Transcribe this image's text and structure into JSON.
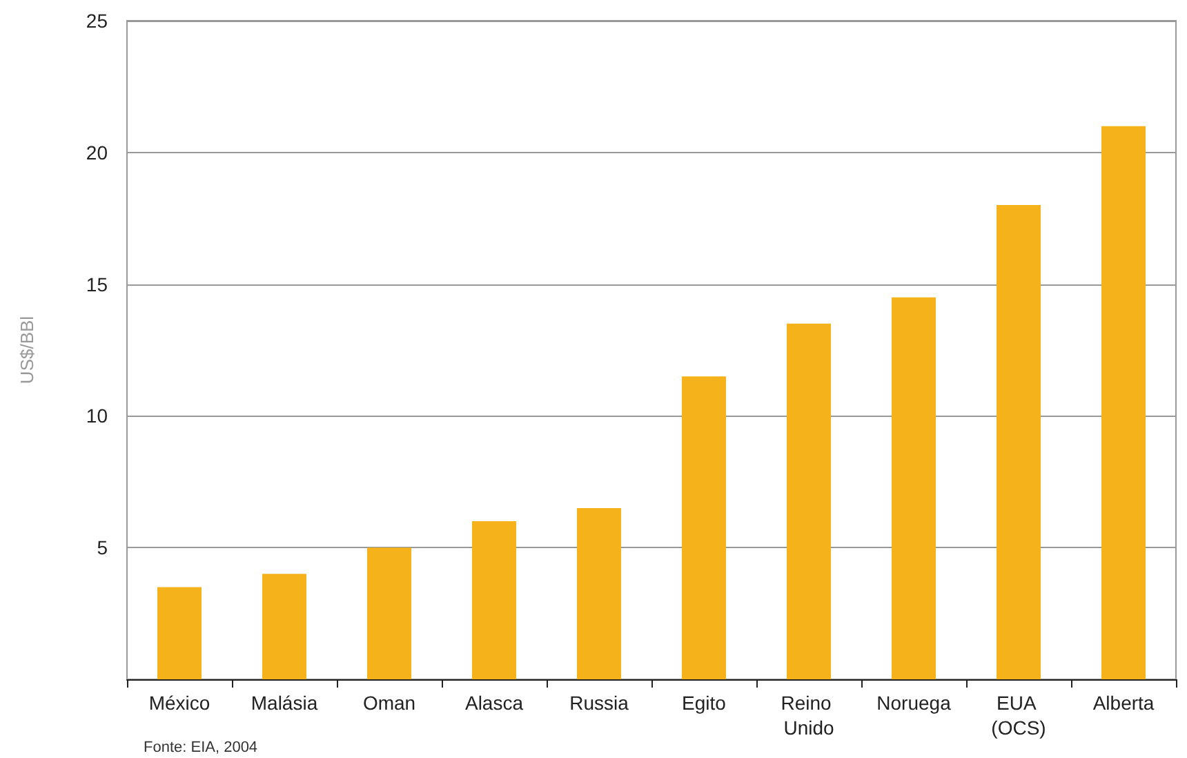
{
  "chart_data": {
    "type": "bar",
    "ylabel": "US$/BBl",
    "categories": [
      "México",
      "Malásia",
      "Oman",
      "Alasca",
      "Russia",
      "Egito",
      "Reino Unido",
      "Noruega",
      "EUA (OCS)",
      "Alberta"
    ],
    "values": [
      3.5,
      4,
      5,
      6,
      6.5,
      11.5,
      13.5,
      14.5,
      18,
      21
    ],
    "color": "#f5b21a",
    "ylim": [
      0,
      25
    ],
    "yticks": [
      {
        "value": 0,
        "label": null
      },
      5,
      10,
      15,
      20,
      25
    ],
    "grid": "y",
    "annotations": [
      "Fonte: EIA, 2004"
    ]
  }
}
